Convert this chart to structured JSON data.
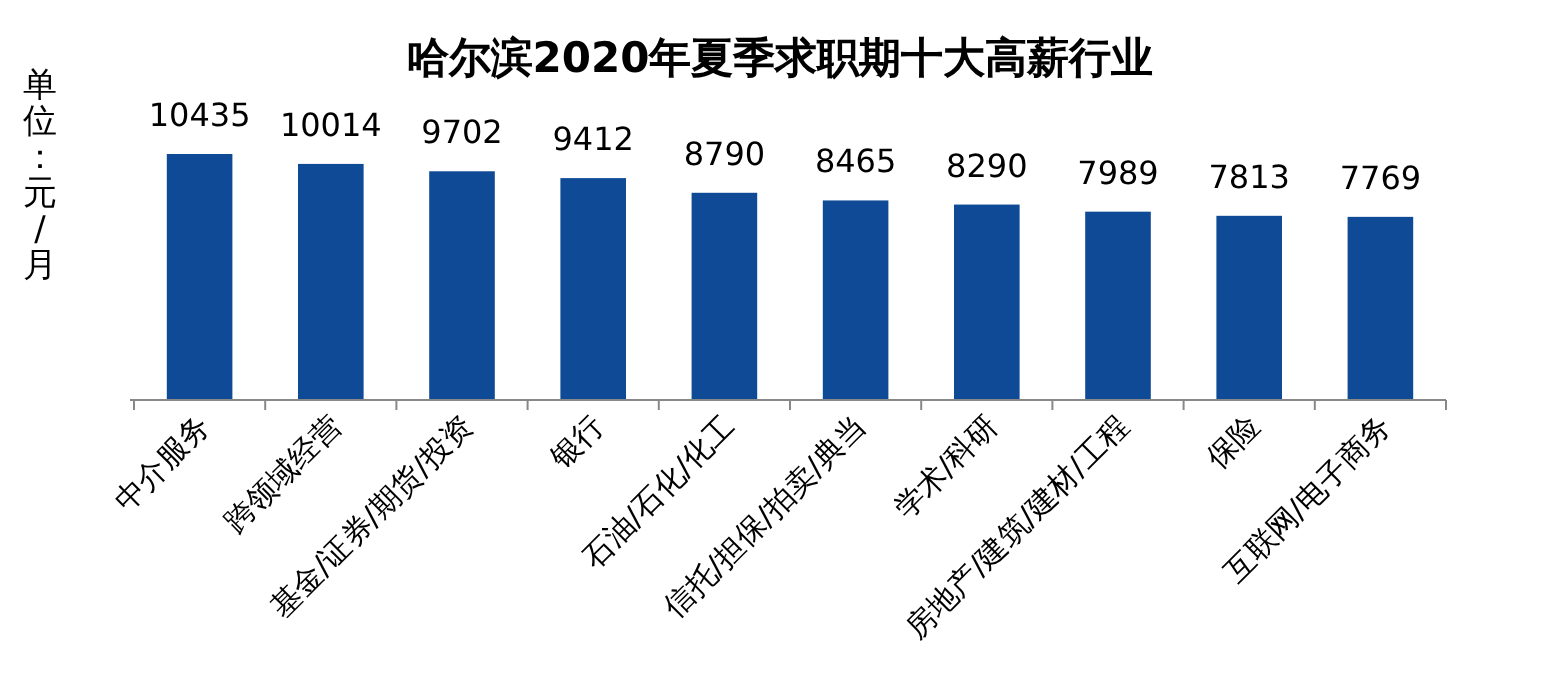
{
  "chart_data": {
    "type": "bar",
    "title": "哈尔滨2020年夏季求职期十大高薪行业",
    "ylabel": "单位：元/月",
    "categories": [
      "中介服务",
      "跨领域经营",
      "基金/证券/期货/投资",
      "银行",
      "石油/石化/化工",
      "信托/担保/拍卖/典当",
      "学术/科研",
      "房地产/建筑/建材/工程",
      "保险",
      "互联网/电子商务"
    ],
    "values": [
      10435,
      10014,
      9702,
      9412,
      8790,
      8465,
      8290,
      7989,
      7813,
      7769
    ],
    "color": "#0e4a96",
    "data_labels": true
  }
}
